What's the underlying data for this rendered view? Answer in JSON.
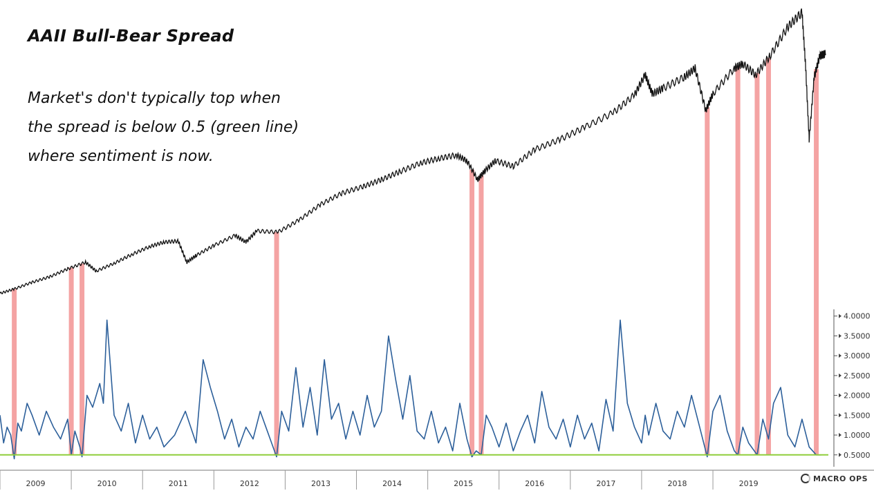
{
  "chart_data": {
    "type": "line",
    "title": "AAII Bull-Bear Spread",
    "annotation": [
      "Market's don't typically top when",
      "the spread is below 0.5 (green line)",
      "where sentiment is now."
    ],
    "x_years": [
      "2009",
      "2010",
      "2011",
      "2012",
      "2013",
      "2014",
      "2015",
      "2016",
      "2017",
      "2018",
      "2019"
    ],
    "x_range": [
      2009.0,
      2020.6
    ],
    "y_ticks": [
      "4.0000",
      "3.5000",
      "3.0000",
      "2.5000",
      "2.0000",
      "1.5000",
      "1.0000",
      "0.5000"
    ],
    "ylim": [
      0.2,
      4.1
    ],
    "threshold": 0.5,
    "threshold_color": "#8fce3a",
    "spread_color": "#2c5f9a",
    "price_color": "#111111",
    "highlight_color": "#f4a3a3",
    "highlight_dates": [
      2009.2,
      2010.0,
      2010.15,
      2012.88,
      2015.62,
      2015.75,
      2018.92,
      2019.35,
      2019.62,
      2019.78,
      2020.45
    ],
    "price_series": {
      "x": [
        2009.0,
        2009.2,
        2009.45,
        2009.7,
        2009.95,
        2010.2,
        2010.35,
        2010.6,
        2010.85,
        2011.1,
        2011.3,
        2011.5,
        2011.62,
        2011.75,
        2012.0,
        2012.3,
        2012.45,
        2012.6,
        2012.9,
        2013.2,
        2013.5,
        2013.8,
        2014.1,
        2014.35,
        2014.6,
        2014.9,
        2015.15,
        2015.4,
        2015.55,
        2015.7,
        2015.8,
        2015.95,
        2016.2,
        2016.5,
        2016.85,
        2017.2,
        2017.6,
        2017.9,
        2018.05,
        2018.15,
        2018.3,
        2018.6,
        2018.75,
        2018.9,
        2019.0,
        2019.3,
        2019.42,
        2019.6,
        2019.8,
        2020.05,
        2020.25,
        2020.3,
        2020.35,
        2020.42,
        2020.5,
        2020.58
      ],
      "y": [
        860,
        900,
        960,
        1010,
        1080,
        1140,
        1060,
        1130,
        1210,
        1280,
        1320,
        1330,
        1140,
        1200,
        1290,
        1380,
        1320,
        1420,
        1410,
        1520,
        1660,
        1760,
        1820,
        1880,
        1950,
        2030,
        2070,
        2100,
        2050,
        1880,
        1960,
        2050,
        2000,
        2150,
        2240,
        2350,
        2480,
        2640,
        2820,
        2650,
        2700,
        2800,
        2880,
        2500,
        2650,
        2880,
        2920,
        2820,
        2990,
        3250,
        3380,
        2900,
        2240,
        2800,
        2990,
        3010
      ]
    },
    "spread_series": {
      "x": [
        2009.0,
        2009.05,
        2009.1,
        2009.15,
        2009.2,
        2009.25,
        2009.3,
        2009.38,
        2009.45,
        2009.55,
        2009.65,
        2009.75,
        2009.85,
        2009.95,
        2010.0,
        2010.05,
        2010.12,
        2010.15,
        2010.22,
        2010.3,
        2010.4,
        2010.45,
        2010.5,
        2010.6,
        2010.7,
        2010.8,
        2010.9,
        2011.0,
        2011.1,
        2011.2,
        2011.3,
        2011.45,
        2011.6,
        2011.75,
        2011.85,
        2011.95,
        2012.05,
        2012.15,
        2012.25,
        2012.35,
        2012.45,
        2012.55,
        2012.65,
        2012.75,
        2012.85,
        2012.88,
        2012.95,
        2013.05,
        2013.15,
        2013.25,
        2013.35,
        2013.45,
        2013.55,
        2013.65,
        2013.75,
        2013.85,
        2013.95,
        2014.05,
        2014.15,
        2014.25,
        2014.35,
        2014.45,
        2014.55,
        2014.65,
        2014.75,
        2014.85,
        2014.95,
        2015.05,
        2015.15,
        2015.25,
        2015.35,
        2015.45,
        2015.55,
        2015.62,
        2015.68,
        2015.75,
        2015.82,
        2015.9,
        2016.0,
        2016.1,
        2016.2,
        2016.3,
        2016.4,
        2016.5,
        2016.6,
        2016.7,
        2016.8,
        2016.9,
        2017.0,
        2017.1,
        2017.2,
        2017.3,
        2017.4,
        2017.5,
        2017.6,
        2017.7,
        2017.8,
        2017.9,
        2018.0,
        2018.05,
        2018.1,
        2018.2,
        2018.3,
        2018.4,
        2018.5,
        2018.6,
        2018.7,
        2018.8,
        2018.92,
        2019.0,
        2019.1,
        2019.2,
        2019.3,
        2019.35,
        2019.42,
        2019.5,
        2019.62,
        2019.7,
        2019.78,
        2019.85,
        2019.95,
        2020.05,
        2020.15,
        2020.25,
        2020.35,
        2020.45,
        2020.52
      ],
      "y": [
        1.5,
        0.8,
        1.2,
        1.0,
        0.4,
        1.3,
        1.1,
        1.8,
        1.5,
        1.0,
        1.6,
        1.2,
        0.9,
        1.4,
        0.5,
        1.1,
        0.7,
        0.45,
        2.0,
        1.7,
        2.3,
        1.8,
        3.9,
        1.5,
        1.1,
        1.8,
        0.8,
        1.5,
        0.9,
        1.2,
        0.7,
        1.0,
        1.6,
        0.8,
        2.9,
        2.2,
        1.6,
        0.9,
        1.4,
        0.7,
        1.2,
        0.9,
        1.6,
        1.1,
        0.6,
        0.45,
        1.6,
        1.1,
        2.7,
        1.2,
        2.2,
        1.0,
        2.9,
        1.4,
        1.8,
        0.9,
        1.6,
        1.0,
        2.0,
        1.2,
        1.6,
        3.5,
        2.4,
        1.4,
        2.5,
        1.1,
        0.9,
        1.6,
        0.8,
        1.2,
        0.6,
        1.8,
        0.9,
        0.45,
        0.6,
        0.5,
        1.5,
        1.2,
        0.7,
        1.3,
        0.6,
        1.1,
        1.5,
        0.8,
        2.1,
        1.2,
        0.9,
        1.4,
        0.7,
        1.5,
        0.9,
        1.3,
        0.6,
        1.9,
        1.1,
        3.9,
        1.8,
        1.2,
        0.8,
        1.5,
        1.0,
        1.8,
        1.1,
        0.9,
        1.6,
        1.2,
        2.0,
        1.3,
        0.45,
        1.6,
        2.0,
        1.1,
        0.6,
        0.5,
        1.2,
        0.8,
        0.5,
        1.4,
        0.9,
        1.8,
        2.2,
        1.0,
        0.7,
        1.4,
        0.7,
        0.5,
        0.5
      ]
    }
  }
}
